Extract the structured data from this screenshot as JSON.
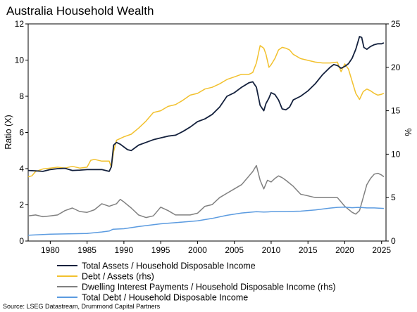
{
  "chart_data": {
    "type": "line",
    "title": "Australia Household Wealth",
    "ylabel_left": "Ratio (X)",
    "ylabel_right": "%",
    "xlim": [
      1977,
      2025.6
    ],
    "ylim_left": [
      0,
      12
    ],
    "ylim_right": [
      0,
      25
    ],
    "x_ticks": [
      "1980",
      "1985",
      "1990",
      "1995",
      "2000",
      "2005",
      "2010",
      "2015",
      "2020",
      "2025"
    ],
    "y_left_ticks": [
      "0",
      "2",
      "4",
      "6",
      "8",
      "10",
      "12"
    ],
    "y_right_ticks": [
      "0",
      "5",
      "10",
      "15",
      "20",
      "25"
    ],
    "grid": false,
    "legend_position": "bottom",
    "series": [
      {
        "name": "Total Assets / Household Disposable Income",
        "axis": "left",
        "color": "#14213d",
        "x": [
          1977,
          1978,
          1979,
          1980,
          1981,
          1982,
          1983,
          1984,
          1985,
          1986,
          1987,
          1988,
          1988.3,
          1988.6,
          1989,
          1989.5,
          1990,
          1990.5,
          1991,
          1991.5,
          1992,
          1993,
          1994,
          1995,
          1996,
          1997,
          1998,
          1999,
          2000,
          2001,
          2002,
          2003,
          2004,
          2005,
          2006,
          2007,
          2007.5,
          2008,
          2008.5,
          2009,
          2009.3,
          2009.7,
          2010,
          2010.5,
          2011,
          2011.5,
          2012,
          2012.5,
          2013,
          2014,
          2015,
          2016,
          2017,
          2018,
          2018.5,
          2019,
          2019.5,
          2020,
          2020.5,
          2021,
          2021.5,
          2022,
          2022.3,
          2022.6,
          2023,
          2023.5,
          2024,
          2024.5,
          2025,
          2025.3
        ],
        "values": [
          3.9,
          3.88,
          3.85,
          3.95,
          4.0,
          4.02,
          3.9,
          3.92,
          3.95,
          3.95,
          3.95,
          3.85,
          4.1,
          5.3,
          5.45,
          5.35,
          5.2,
          5.05,
          5.0,
          5.15,
          5.3,
          5.45,
          5.6,
          5.7,
          5.8,
          5.85,
          6.05,
          6.3,
          6.6,
          6.75,
          7.0,
          7.4,
          8.0,
          8.2,
          8.5,
          8.75,
          8.8,
          8.5,
          7.5,
          7.2,
          7.6,
          7.9,
          8.2,
          8.1,
          7.8,
          7.3,
          7.25,
          7.4,
          7.8,
          8.0,
          8.3,
          8.7,
          9.2,
          9.6,
          9.75,
          9.7,
          9.55,
          9.65,
          9.8,
          10.1,
          10.6,
          11.3,
          11.25,
          10.7,
          10.6,
          10.75,
          10.85,
          10.9,
          10.9,
          10.95
        ]
      },
      {
        "name": "Debt / Assets (rhs)",
        "axis": "right",
        "color": "#f2c12e",
        "x": [
          1977,
          1977.5,
          1978,
          1979,
          1980,
          1981,
          1982,
          1983,
          1984,
          1985,
          1985.5,
          1986,
          1987,
          1988,
          1988.3,
          1988.6,
          1989,
          1990,
          1991,
          1992,
          1993,
          1994,
          1995,
          1996,
          1997,
          1998,
          1999,
          2000,
          2001,
          2002,
          2003,
          2004,
          2005,
          2006,
          2007,
          2007.5,
          2008,
          2008.5,
          2009,
          2009.3,
          2009.7,
          2010,
          2010.5,
          2011,
          2011.5,
          2012,
          2012.5,
          2013,
          2014,
          2015,
          2016,
          2017,
          2018,
          2019,
          2019.5,
          2020,
          2020.5,
          2021,
          2021.5,
          2022,
          2022.5,
          2023,
          2023.5,
          2024,
          2024.5,
          2025,
          2025.3
        ],
        "values": [
          7.4,
          7.5,
          8.0,
          8.3,
          8.4,
          8.5,
          8.4,
          8.6,
          8.4,
          8.5,
          9.3,
          9.4,
          9.2,
          9.2,
          8.5,
          10.3,
          11.6,
          12.0,
          12.3,
          13.0,
          13.8,
          14.8,
          15.0,
          15.5,
          15.7,
          16.2,
          16.8,
          17.0,
          17.5,
          17.7,
          18.1,
          18.6,
          18.9,
          19.2,
          19.2,
          19.4,
          20.5,
          22.5,
          22.2,
          21.5,
          20.0,
          20.3,
          21.0,
          22.0,
          22.3,
          22.2,
          22.0,
          21.5,
          21.0,
          20.8,
          20.6,
          20.5,
          20.5,
          20.6,
          19.5,
          20.4,
          19.8,
          18.4,
          17.0,
          16.3,
          17.2,
          17.5,
          17.3,
          17.0,
          16.8,
          16.9,
          17.0
        ]
      },
      {
        "name": "Dwelling Interest Payments / Household Disposable Income (rhs)",
        "axis": "right",
        "color": "#808080",
        "x": [
          1977,
          1978,
          1979,
          1980,
          1981,
          1982,
          1983,
          1984,
          1985,
          1986,
          1987,
          1988,
          1989,
          1989.5,
          1990,
          1991,
          1992,
          1993,
          1994,
          1995,
          1996,
          1997,
          1998,
          1999,
          2000,
          2001,
          2002,
          2003,
          2004,
          2005,
          2006,
          2007,
          2007.5,
          2008,
          2008.5,
          2009,
          2009.5,
          2010,
          2010.5,
          2011,
          2011.5,
          2012,
          2013,
          2014,
          2015,
          2016,
          2017,
          2018,
          2019,
          2020,
          2021,
          2021.5,
          2022,
          2022.5,
          2023,
          2023.5,
          2024,
          2024.5,
          2025,
          2025.3
        ],
        "values": [
          2.9,
          3.0,
          2.8,
          2.9,
          3.0,
          3.5,
          3.8,
          3.4,
          3.3,
          3.6,
          4.3,
          4.0,
          4.3,
          4.8,
          4.5,
          3.8,
          3.0,
          2.7,
          2.9,
          3.9,
          3.5,
          3.0,
          3.0,
          3.0,
          3.2,
          4.0,
          4.2,
          5.0,
          5.5,
          6.0,
          6.5,
          7.5,
          8.0,
          8.7,
          7.0,
          6.0,
          7.0,
          6.8,
          7.2,
          7.5,
          7.3,
          7.0,
          6.3,
          5.4,
          5.2,
          5.0,
          5.0,
          5.0,
          5.0,
          4.0,
          3.3,
          3.1,
          3.5,
          5.0,
          6.5,
          7.2,
          7.7,
          7.8,
          7.6,
          7.4
        ]
      },
      {
        "name": "Total Debt / Household Disposable Income",
        "axis": "left",
        "color": "#5b9be0",
        "x": [
          1977,
          1980,
          1985,
          1987,
          1988,
          1988.5,
          1989,
          1990,
          1992,
          1995,
          1998,
          2000,
          2002,
          2004,
          2006,
          2008,
          2009,
          2010,
          2012,
          2014,
          2016,
          2018,
          2019,
          2020,
          2021,
          2022,
          2023,
          2024,
          2025.3
        ],
        "values": [
          0.32,
          0.38,
          0.42,
          0.5,
          0.55,
          0.65,
          0.66,
          0.68,
          0.8,
          0.95,
          1.05,
          1.12,
          1.25,
          1.42,
          1.55,
          1.62,
          1.6,
          1.62,
          1.63,
          1.65,
          1.72,
          1.82,
          1.86,
          1.87,
          1.84,
          1.86,
          1.83,
          1.83,
          1.8
        ]
      }
    ],
    "source": "Source: LSEG Datastream, Drummond Capital Partners"
  }
}
